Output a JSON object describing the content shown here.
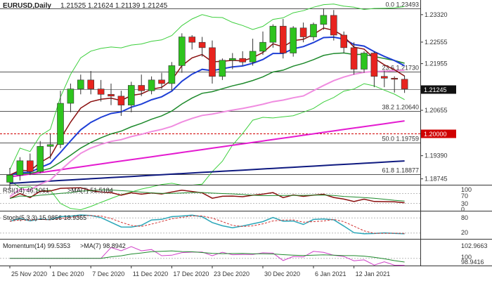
{
  "header": {
    "symbol": "EURUSD,Daily",
    "ohlc": "1.21525 1.21624 1.21139 1.21245"
  },
  "price_axis": {
    "ticks": [
      "1.23320",
      "1.22555",
      "1.21955",
      "1.20655",
      "1.19390",
      "1.18745"
    ],
    "current_price": "1.21245",
    "level_price": "1.20000"
  },
  "fib_levels": [
    {
      "label": "0.0 1.23493",
      "price": 1.23493
    },
    {
      "label": "23.6 1.21730",
      "price": 1.2173
    },
    {
      "label": "38.2 1.20640",
      "price": 1.2064
    },
    {
      "label": "50.0 1.19759",
      "price": 1.19759
    },
    {
      "label": "61.8 1.18877",
      "price": 1.18877
    }
  ],
  "rsi": {
    "label": "RSI(14) 46.1061",
    "ma_label": ">MA(7) 51.5184",
    "ticks": [
      "100",
      "70",
      "30",
      "0"
    ]
  },
  "stoch": {
    "label": "Stoch(5,3,3) 15.9856 18.9365",
    "ticks": [
      "80",
      "20"
    ]
  },
  "momentum": {
    "label": "Momentum(14) 99.5353",
    "ma_label": ">MA(7) 98.8942",
    "ticks": [
      "102.9663",
      "100",
      "98.9416"
    ]
  },
  "date_axis": [
    "25 Nov 2020",
    "1 Dec 2020",
    "7 Dec 2020",
    "11 Dec 2020",
    "17 Dec 2020",
    "23 Dec 2020",
    "30 Dec 2020",
    "6 Jan 2021",
    "12 Jan 2021"
  ],
  "colors": {
    "bull": "#2ec41e",
    "bear": "#e8231e",
    "ma_blue": "#1e3fd6",
    "ma_green": "#1e8a2c",
    "ma_darkred": "#8a0f0f",
    "ma_pink": "#f08ce0",
    "ma_magenta": "#e41bd0",
    "ma_navy": "#0f1a80",
    "bb": "#3ccf3c",
    "current_bg": "#111111",
    "level_bg": "#d00000"
  },
  "chart_data": {
    "type": "candlestick",
    "candles": [
      {
        "o": 1.1865,
        "h": 1.1905,
        "l": 1.1845,
        "c": 1.1885
      },
      {
        "o": 1.1885,
        "h": 1.1935,
        "l": 1.187,
        "c": 1.1925
      },
      {
        "o": 1.1925,
        "h": 1.1945,
        "l": 1.1885,
        "c": 1.1895
      },
      {
        "o": 1.1895,
        "h": 1.198,
        "l": 1.189,
        "c": 1.1965
      },
      {
        "o": 1.1965,
        "h": 1.2,
        "l": 1.193,
        "c": 1.197
      },
      {
        "o": 1.197,
        "h": 1.212,
        "l": 1.196,
        "c": 1.2085
      },
      {
        "o": 1.2085,
        "h": 1.214,
        "l": 1.206,
        "c": 1.2125
      },
      {
        "o": 1.2125,
        "h": 1.2165,
        "l": 1.211,
        "c": 1.215
      },
      {
        "o": 1.215,
        "h": 1.2175,
        "l": 1.211,
        "c": 1.2125
      },
      {
        "o": 1.2125,
        "h": 1.215,
        "l": 1.209,
        "c": 1.211
      },
      {
        "o": 1.211,
        "h": 1.214,
        "l": 1.208,
        "c": 1.2105
      },
      {
        "o": 1.2105,
        "h": 1.212,
        "l": 1.205,
        "c": 1.208
      },
      {
        "o": 1.208,
        "h": 1.2145,
        "l": 1.206,
        "c": 1.2135
      },
      {
        "o": 1.2135,
        "h": 1.2165,
        "l": 1.2105,
        "c": 1.212
      },
      {
        "o": 1.212,
        "h": 1.216,
        "l": 1.211,
        "c": 1.215
      },
      {
        "o": 1.215,
        "h": 1.217,
        "l": 1.2125,
        "c": 1.214
      },
      {
        "o": 1.214,
        "h": 1.22,
        "l": 1.212,
        "c": 1.219
      },
      {
        "o": 1.219,
        "h": 1.228,
        "l": 1.217,
        "c": 1.227
      },
      {
        "o": 1.227,
        "h": 1.2275,
        "l": 1.2235,
        "c": 1.2255
      },
      {
        "o": 1.2255,
        "h": 1.227,
        "l": 1.2215,
        "c": 1.224
      },
      {
        "o": 1.224,
        "h": 1.226,
        "l": 1.214,
        "c": 1.216
      },
      {
        "o": 1.216,
        "h": 1.221,
        "l": 1.215,
        "c": 1.2205
      },
      {
        "o": 1.2205,
        "h": 1.2225,
        "l": 1.218,
        "c": 1.221
      },
      {
        "o": 1.221,
        "h": 1.223,
        "l": 1.219,
        "c": 1.22
      },
      {
        "o": 1.22,
        "h": 1.2265,
        "l": 1.219,
        "c": 1.223
      },
      {
        "o": 1.223,
        "h": 1.2285,
        "l": 1.222,
        "c": 1.2255
      },
      {
        "o": 1.2255,
        "h": 1.2305,
        "l": 1.224,
        "c": 1.23
      },
      {
        "o": 1.23,
        "h": 1.232,
        "l": 1.221,
        "c": 1.2225
      },
      {
        "o": 1.2225,
        "h": 1.23,
        "l": 1.2215,
        "c": 1.2295
      },
      {
        "o": 1.2295,
        "h": 1.231,
        "l": 1.2255,
        "c": 1.227
      },
      {
        "o": 1.227,
        "h": 1.231,
        "l": 1.226,
        "c": 1.2305
      },
      {
        "o": 1.2305,
        "h": 1.2349,
        "l": 1.229,
        "c": 1.233
      },
      {
        "o": 1.233,
        "h": 1.2345,
        "l": 1.226,
        "c": 1.2275
      },
      {
        "o": 1.2275,
        "h": 1.2285,
        "l": 1.2225,
        "c": 1.224
      },
      {
        "o": 1.224,
        "h": 1.2255,
        "l": 1.2165,
        "c": 1.218
      },
      {
        "o": 1.218,
        "h": 1.223,
        "l": 1.217,
        "c": 1.2225
      },
      {
        "o": 1.2225,
        "h": 1.223,
        "l": 1.213,
        "c": 1.216
      },
      {
        "o": 1.216,
        "h": 1.2175,
        "l": 1.213,
        "c": 1.2155
      },
      {
        "o": 1.2155,
        "h": 1.216,
        "l": 1.2115,
        "c": 1.2152
      },
      {
        "o": 1.2152,
        "h": 1.2162,
        "l": 1.2114,
        "c": 1.2125
      }
    ]
  }
}
